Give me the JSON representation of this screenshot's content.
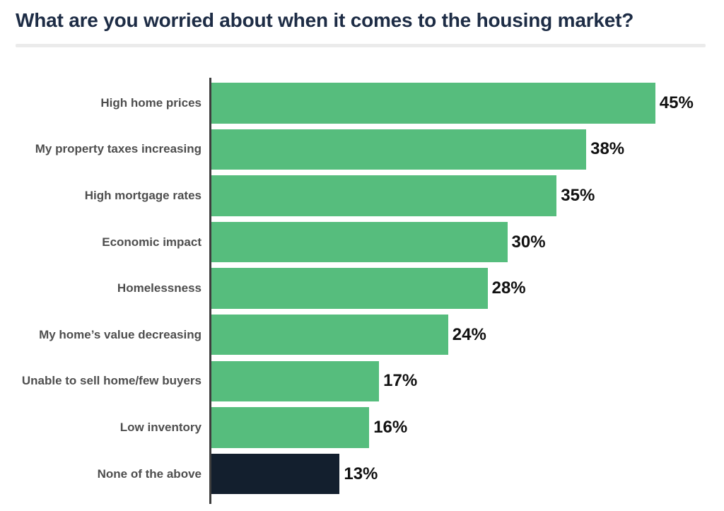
{
  "header": {
    "title": "What are you worried about when it comes to the housing market?"
  },
  "chart_data": {
    "type": "bar",
    "orientation": "horizontal",
    "title": "What are you worried about when it comes to the housing market?",
    "categories": [
      "High home prices",
      "My property taxes increasing",
      "High mortgage rates",
      "Economic impact",
      "Homelessness",
      "My home’s value decreasing",
      "Unable to sell home/few buyers",
      "Low inventory",
      "None of the above"
    ],
    "values": [
      45,
      38,
      35,
      30,
      28,
      24,
      17,
      16,
      13
    ],
    "value_labels": [
      "45%",
      "38%",
      "35%",
      "30%",
      "28%",
      "24%",
      "17%",
      "16%",
      "13%"
    ],
    "unit": "%",
    "xlim": [
      0,
      50
    ],
    "bar_colors": [
      "#56bd7d",
      "#56bd7d",
      "#56bd7d",
      "#56bd7d",
      "#56bd7d",
      "#56bd7d",
      "#56bd7d",
      "#56bd7d",
      "#131f2e"
    ],
    "legend": "none",
    "gridlines": false,
    "axis_line": "left-vertical",
    "value_labels_position": "end-of-bar"
  },
  "colors": {
    "accent_green": "#56bd7d",
    "highlight_dark": "#131f2e",
    "title_text": "#1d2c45",
    "category_text": "#4e4e4e",
    "value_text": "#111111",
    "axis_line": "#3d3d3d",
    "divider": "#ebebeb"
  }
}
